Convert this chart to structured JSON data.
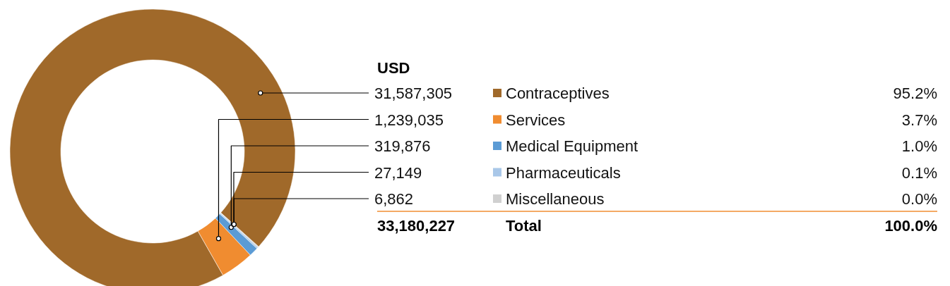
{
  "chart_data": {
    "type": "donut",
    "legend_title": "USD",
    "legend": "right",
    "categories": [
      "Contraceptives",
      "Services",
      "Medical Equipment",
      "Pharmaceuticals",
      "Miscellaneous"
    ],
    "values": [
      31587305,
      1239035,
      319876,
      27149,
      6862
    ],
    "colors": [
      "#a0692a",
      "#f08c30",
      "#5b9bd5",
      "#a9c7e8",
      "#d0d0d0"
    ],
    "value_labels": [
      "31,587,305",
      "1,239,035",
      "319,876",
      "27,149",
      "6,862"
    ],
    "totals": [
      "33,180,227"
    ],
    "annotations": [
      "95.2%",
      "3.7%",
      "1.0%",
      "0.1%",
      "0.0%",
      "Total",
      "100.0%"
    ]
  }
}
